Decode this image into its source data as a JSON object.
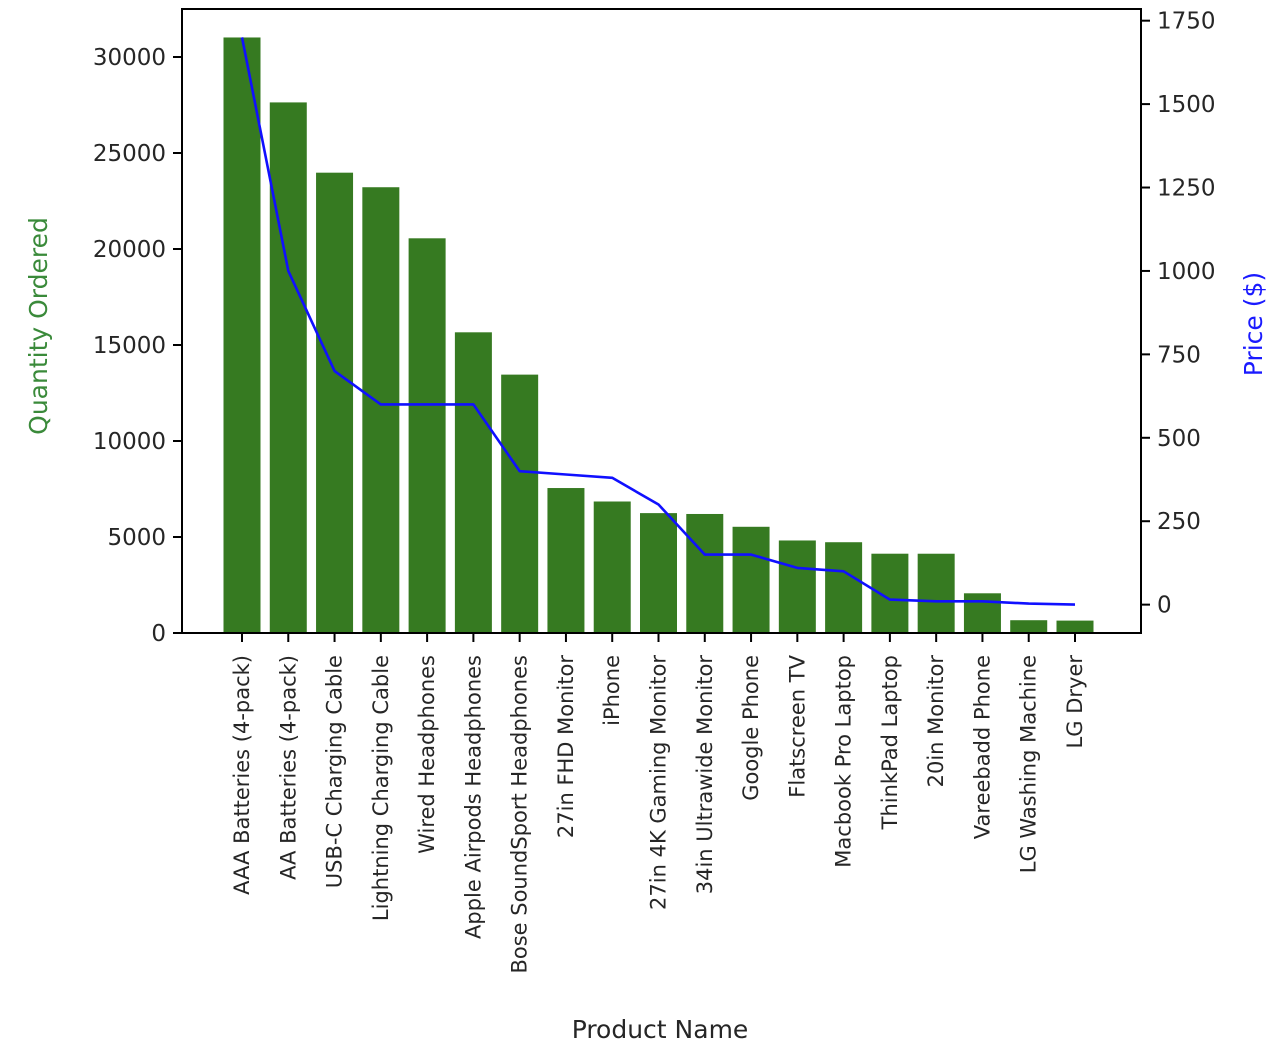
{
  "chart_data": {
    "type": "bar",
    "title": "",
    "xlabel": "Product Name",
    "ylabel": "Quantity Ordered",
    "y2label": "Price ($)",
    "categories": [
      "AAA Batteries (4-pack)",
      "AA Batteries (4-pack)",
      "USB-C Charging Cable",
      "Lightning Charging Cable",
      "Wired Headphones",
      "Apple Airpods Headphones",
      "Bose SoundSport Headphones",
      "27in FHD Monitor",
      "iPhone",
      "27in 4K Gaming Monitor",
      "34in Ultrawide Monitor",
      "Google Phone",
      "Flatscreen TV",
      "Macbook Pro Laptop",
      "ThinkPad Laptop",
      "20in Monitor",
      "Vareebadd Phone",
      "LG Washing Machine",
      "LG Dryer"
    ],
    "series": [
      {
        "type": "bar",
        "axis": "left",
        "color": "#367a21",
        "values": [
          31017,
          27635,
          23975,
          23217,
          20557,
          15661,
          13457,
          7550,
          6849,
          6244,
          6199,
          5532,
          4819,
          4728,
          4130,
          4129,
          2068,
          666,
          646
        ]
      },
      {
        "type": "line",
        "axis": "right",
        "color": "#1010ff",
        "values": [
          1700,
          1000,
          700,
          600,
          600,
          600,
          400,
          390,
          380,
          300,
          150,
          150,
          110,
          100,
          15,
          10,
          10,
          3,
          0
        ]
      }
    ],
    "ylim": [
      0,
      32500
    ],
    "y_ticks": [
      0,
      5000,
      10000,
      15000,
      20000,
      25000,
      30000
    ],
    "y2lim": [
      -85,
      1785
    ],
    "y2_ticks": [
      0,
      250,
      500,
      750,
      1000,
      1250,
      1500,
      1750
    ],
    "ylabel_color": "#3a8a3a",
    "y2label_color": "#1a1aff",
    "grid": false,
    "legend": "none"
  }
}
